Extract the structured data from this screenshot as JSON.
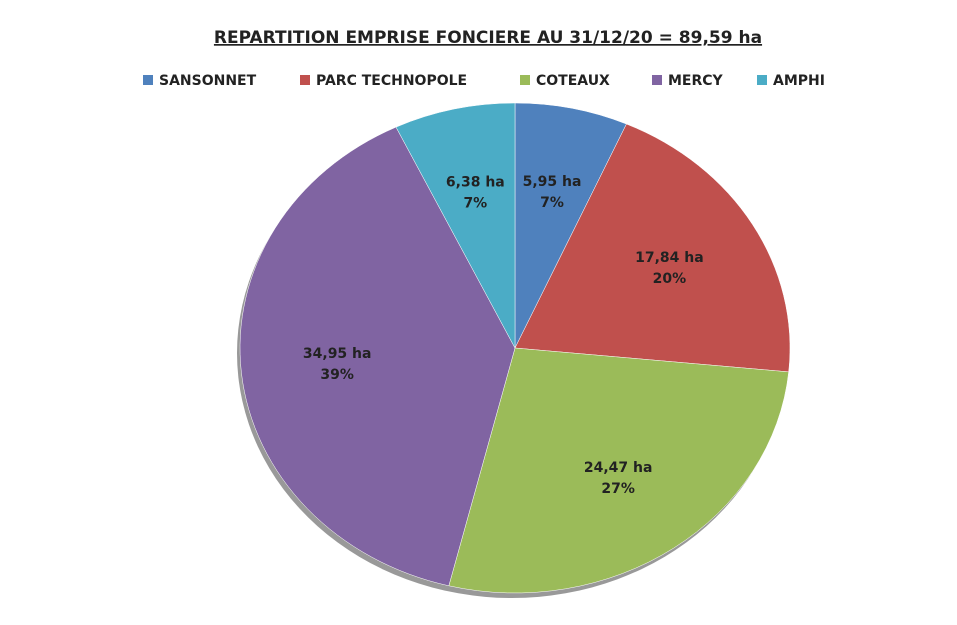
{
  "chart_data": {
    "type": "pie",
    "title": "REPARTITION EMPRISE FONCIERE AU 31/12/20 = 89,59 ha",
    "categories": [
      "SANSONNET",
      "PARC TECHNOPOLE",
      "COTEAUX",
      "MERCY",
      "AMPHI"
    ],
    "values": [
      5.95,
      17.84,
      24.47,
      34.95,
      6.38
    ],
    "value_labels": [
      "5,95 ha",
      "17,84 ha",
      "24,47 ha",
      "34,95 ha",
      "6,38 ha"
    ],
    "percents": [
      7,
      20,
      27,
      39,
      7
    ],
    "percent_labels": [
      "7%",
      "20%",
      "27%",
      "39%",
      "7%"
    ],
    "colors": [
      "#4f81bd",
      "#c0504d",
      "#9bbb59",
      "#8064a2",
      "#4bacc6"
    ],
    "legend": "top"
  }
}
